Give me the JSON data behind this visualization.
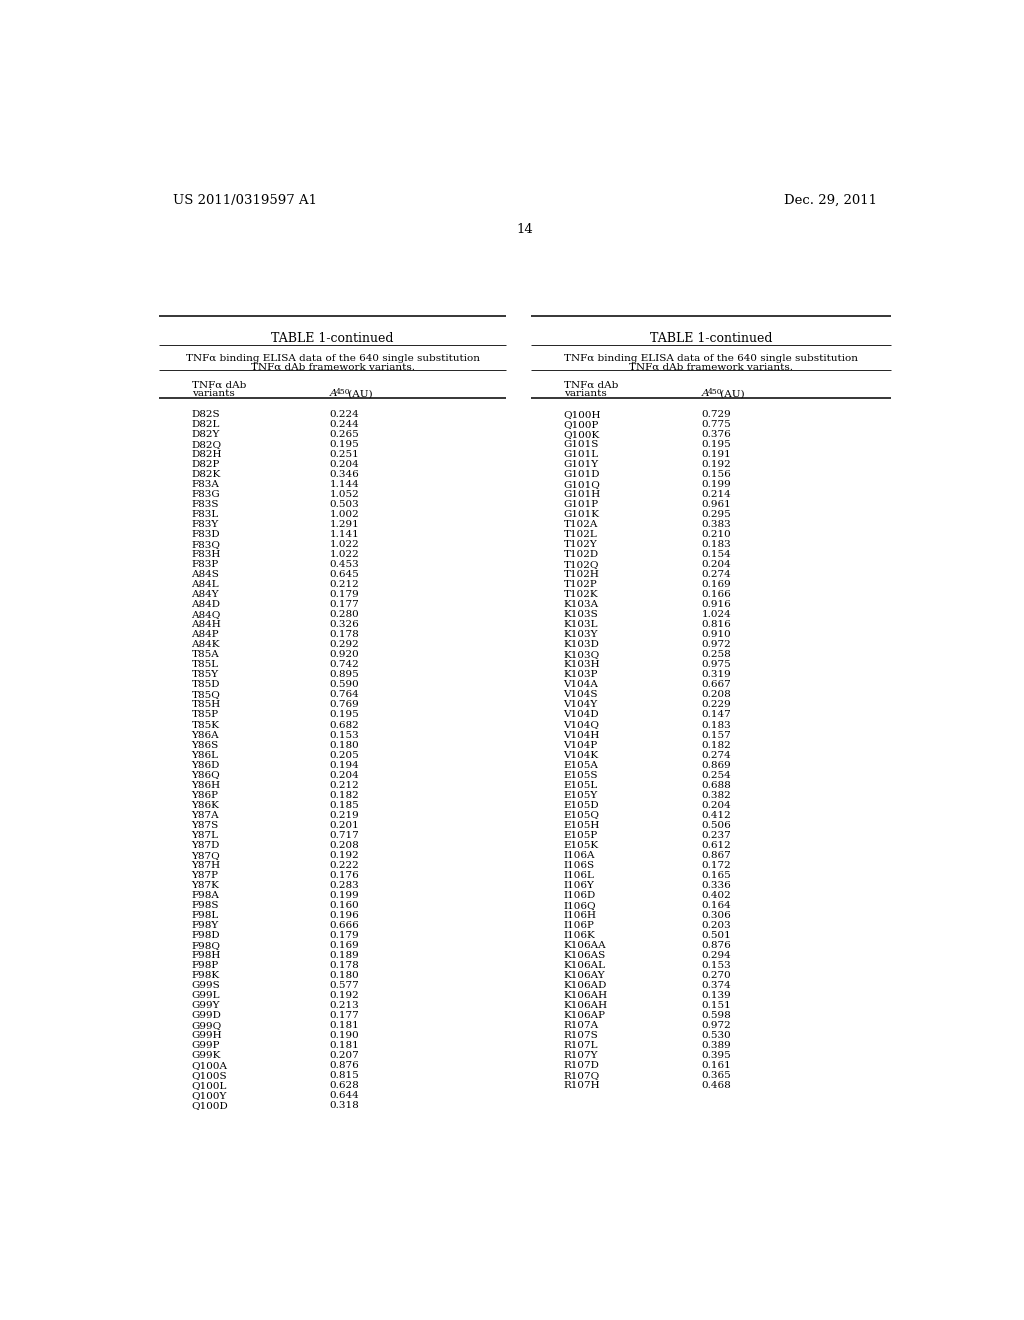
{
  "header_left": "US 2011/0319597 A1",
  "header_right": "Dec. 29, 2011",
  "page_number": "14",
  "table_title": "TABLE 1-continued",
  "table_subtitle_line1": "TNFα binding ELISA data of the 640 single substitution",
  "table_subtitle_line2": "TNFα dAb framework variants.",
  "col1_header1": "TNFα dAb",
  "col1_header2": "variants",
  "left_data": [
    [
      "D82S",
      "0.224"
    ],
    [
      "D82L",
      "0.244"
    ],
    [
      "D82Y",
      "0.265"
    ],
    [
      "D82Q",
      "0.195"
    ],
    [
      "D82H",
      "0.251"
    ],
    [
      "D82P",
      "0.204"
    ],
    [
      "D82K",
      "0.346"
    ],
    [
      "F83A",
      "1.144"
    ],
    [
      "F83G",
      "1.052"
    ],
    [
      "F83S",
      "0.503"
    ],
    [
      "F83L",
      "1.002"
    ],
    [
      "F83Y",
      "1.291"
    ],
    [
      "F83D",
      "1.141"
    ],
    [
      "F83Q",
      "1.022"
    ],
    [
      "F83H",
      "1.022"
    ],
    [
      "F83P",
      "0.453"
    ],
    [
      "A84S",
      "0.645"
    ],
    [
      "A84L",
      "0.212"
    ],
    [
      "A84Y",
      "0.179"
    ],
    [
      "A84D",
      "0.177"
    ],
    [
      "A84Q",
      "0.280"
    ],
    [
      "A84H",
      "0.326"
    ],
    [
      "A84P",
      "0.178"
    ],
    [
      "A84K",
      "0.292"
    ],
    [
      "T85A",
      "0.920"
    ],
    [
      "T85L",
      "0.742"
    ],
    [
      "T85Y",
      "0.895"
    ],
    [
      "T85D",
      "0.590"
    ],
    [
      "T85Q",
      "0.764"
    ],
    [
      "T85H",
      "0.769"
    ],
    [
      "T85P",
      "0.195"
    ],
    [
      "T85K",
      "0.682"
    ],
    [
      "Y86A",
      "0.153"
    ],
    [
      "Y86S",
      "0.180"
    ],
    [
      "Y86L",
      "0.205"
    ],
    [
      "Y86D",
      "0.194"
    ],
    [
      "Y86Q",
      "0.204"
    ],
    [
      "Y86H",
      "0.212"
    ],
    [
      "Y86P",
      "0.182"
    ],
    [
      "Y86K",
      "0.185"
    ],
    [
      "Y87A",
      "0.219"
    ],
    [
      "Y87S",
      "0.201"
    ],
    [
      "Y87L",
      "0.717"
    ],
    [
      "Y87D",
      "0.208"
    ],
    [
      "Y87Q",
      "0.192"
    ],
    [
      "Y87H",
      "0.222"
    ],
    [
      "Y87P",
      "0.176"
    ],
    [
      "Y87K",
      "0.283"
    ],
    [
      "F98A",
      "0.199"
    ],
    [
      "F98S",
      "0.160"
    ],
    [
      "F98L",
      "0.196"
    ],
    [
      "F98Y",
      "0.666"
    ],
    [
      "F98D",
      "0.179"
    ],
    [
      "F98Q",
      "0.169"
    ],
    [
      "F98H",
      "0.189"
    ],
    [
      "F98P",
      "0.178"
    ],
    [
      "F98K",
      "0.180"
    ],
    [
      "G99S",
      "0.577"
    ],
    [
      "G99L",
      "0.192"
    ],
    [
      "G99Y",
      "0.213"
    ],
    [
      "G99D",
      "0.177"
    ],
    [
      "G99Q",
      "0.181"
    ],
    [
      "G99H",
      "0.190"
    ],
    [
      "G99P",
      "0.181"
    ],
    [
      "G99K",
      "0.207"
    ],
    [
      "Q100A",
      "0.876"
    ],
    [
      "Q100S",
      "0.815"
    ],
    [
      "Q100L",
      "0.628"
    ],
    [
      "Q100Y",
      "0.644"
    ],
    [
      "Q100D",
      "0.318"
    ]
  ],
  "right_data": [
    [
      "Q100H",
      "0.729"
    ],
    [
      "Q100P",
      "0.775"
    ],
    [
      "Q100K",
      "0.376"
    ],
    [
      "G101S",
      "0.195"
    ],
    [
      "G101L",
      "0.191"
    ],
    [
      "G101Y",
      "0.192"
    ],
    [
      "G101D",
      "0.156"
    ],
    [
      "G101Q",
      "0.199"
    ],
    [
      "G101H",
      "0.214"
    ],
    [
      "G101P",
      "0.961"
    ],
    [
      "G101K",
      "0.295"
    ],
    [
      "T102A",
      "0.383"
    ],
    [
      "T102L",
      "0.210"
    ],
    [
      "T102Y",
      "0.183"
    ],
    [
      "T102D",
      "0.154"
    ],
    [
      "T102Q",
      "0.204"
    ],
    [
      "T102H",
      "0.274"
    ],
    [
      "T102P",
      "0.169"
    ],
    [
      "T102K",
      "0.166"
    ],
    [
      "K103A",
      "0.916"
    ],
    [
      "K103S",
      "1.024"
    ],
    [
      "K103L",
      "0.816"
    ],
    [
      "K103Y",
      "0.910"
    ],
    [
      "K103D",
      "0.972"
    ],
    [
      "K103Q",
      "0.258"
    ],
    [
      "K103H",
      "0.975"
    ],
    [
      "K103P",
      "0.319"
    ],
    [
      "V104A",
      "0.667"
    ],
    [
      "V104S",
      "0.208"
    ],
    [
      "V104Y",
      "0.229"
    ],
    [
      "V104D",
      "0.147"
    ],
    [
      "V104Q",
      "0.183"
    ],
    [
      "V104H",
      "0.157"
    ],
    [
      "V104P",
      "0.182"
    ],
    [
      "V104K",
      "0.274"
    ],
    [
      "E105A",
      "0.869"
    ],
    [
      "E105S",
      "0.254"
    ],
    [
      "E105L",
      "0.688"
    ],
    [
      "E105Y",
      "0.382"
    ],
    [
      "E105D",
      "0.204"
    ],
    [
      "E105Q",
      "0.412"
    ],
    [
      "E105H",
      "0.506"
    ],
    [
      "E105P",
      "0.237"
    ],
    [
      "E105K",
      "0.612"
    ],
    [
      "I106A",
      "0.867"
    ],
    [
      "I106S",
      "0.172"
    ],
    [
      "I106L",
      "0.165"
    ],
    [
      "I106Y",
      "0.336"
    ],
    [
      "I106D",
      "0.402"
    ],
    [
      "I106Q",
      "0.164"
    ],
    [
      "I106H",
      "0.306"
    ],
    [
      "I106P",
      "0.203"
    ],
    [
      "I106K",
      "0.501"
    ],
    [
      "K106AA",
      "0.876"
    ],
    [
      "K106AS",
      "0.294"
    ],
    [
      "K106AL",
      "0.153"
    ],
    [
      "K106AY",
      "0.270"
    ],
    [
      "K106AD",
      "0.374"
    ],
    [
      "K106AH",
      "0.139"
    ],
    [
      "K106AH",
      "0.151"
    ],
    [
      "K106AP",
      "0.598"
    ],
    [
      "R107A",
      "0.972"
    ],
    [
      "R107S",
      "0.530"
    ],
    [
      "R107L",
      "0.389"
    ],
    [
      "R107Y",
      "0.395"
    ],
    [
      "R107D",
      "0.161"
    ],
    [
      "R107Q",
      "0.365"
    ],
    [
      "R107H",
      "0.468"
    ]
  ]
}
